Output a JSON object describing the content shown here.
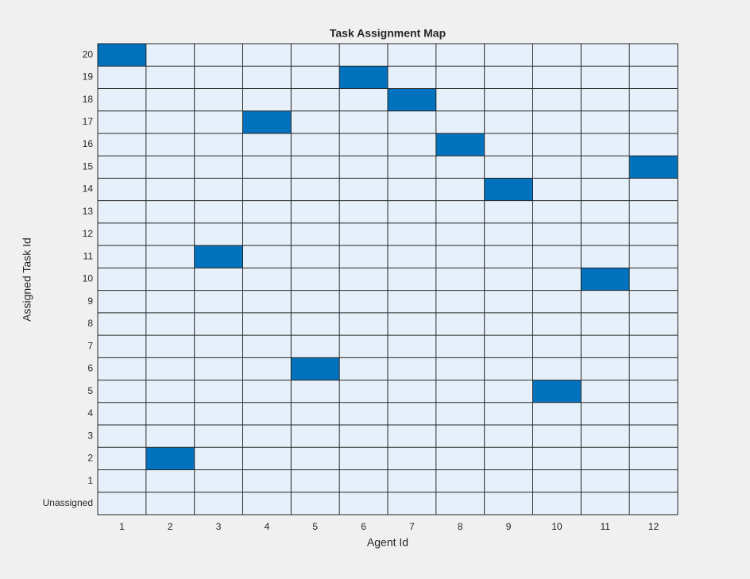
{
  "chart_data": {
    "type": "heatmap",
    "title": "Task Assignment Map",
    "xlabel": "Agent Id",
    "ylabel": "Assigned Task Id",
    "x": [
      1,
      2,
      3,
      4,
      5,
      6,
      7,
      8,
      9,
      10,
      11,
      12
    ],
    "values": [
      20,
      2,
      11,
      17,
      6,
      19,
      18,
      16,
      14,
      5,
      10,
      15
    ],
    "xlim": [
      0.5,
      12.5
    ],
    "xticks": [
      1,
      2,
      3,
      4,
      5,
      6,
      7,
      8,
      9,
      10,
      11,
      12
    ],
    "ylim": [
      -0.5,
      20.5
    ],
    "yticks": [
      {
        "value": 0,
        "label": "Unassigned"
      },
      1,
      2,
      3,
      4,
      5,
      6,
      7,
      8,
      9,
      10,
      11,
      12,
      13,
      14,
      15,
      16,
      17,
      18,
      19,
      20
    ],
    "color": "#0072bd",
    "background_color": "#e6f0fa",
    "grid": true
  }
}
